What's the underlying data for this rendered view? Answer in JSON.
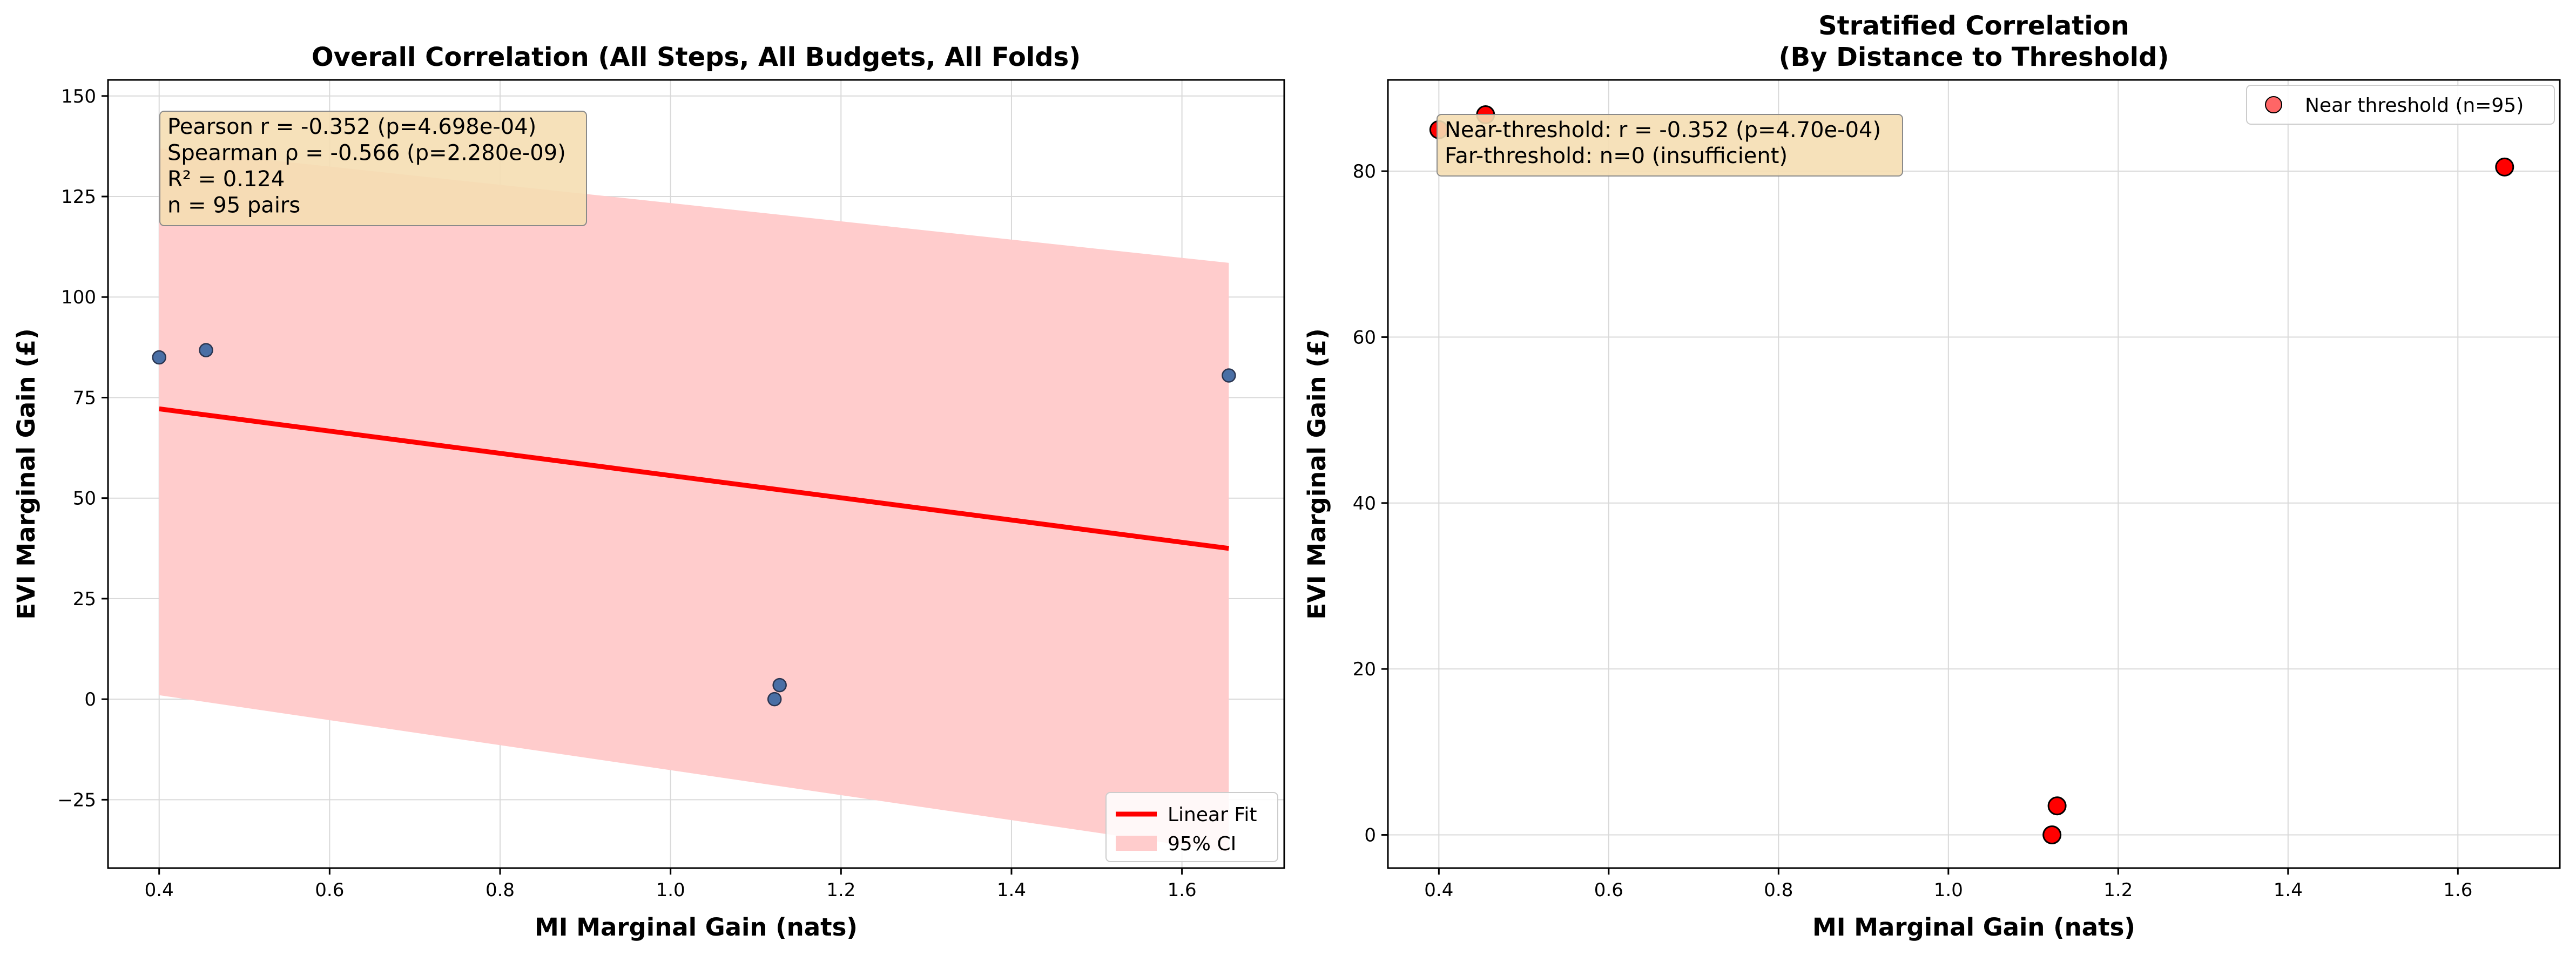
{
  "chart_data": [
    {
      "type": "scatter",
      "title": "Overall Correlation (All Steps, All Budgets, All Folds)",
      "xlabel": "MI Marginal Gain (nats)",
      "ylabel": "EVI Marginal Gain (£)",
      "xlim": [
        0.34,
        1.72
      ],
      "ylim": [
        -42,
        154
      ],
      "x_ticks": [
        0.4,
        0.6,
        0.8,
        1.0,
        1.2,
        1.4,
        1.6
      ],
      "x_tick_labels": [
        "0.4",
        "0.6",
        "0.8",
        "1.0",
        "1.2",
        "1.4",
        "1.6"
      ],
      "y_ticks": [
        -25,
        0,
        25,
        50,
        75,
        100,
        125,
        150
      ],
      "y_tick_labels": [
        "−25",
        "0",
        "25",
        "50",
        "75",
        "100",
        "125",
        "150"
      ],
      "grid": true,
      "points": {
        "x": [
          0.4,
          0.455,
          1.122,
          1.128,
          1.655
        ],
        "y": [
          85.0,
          86.8,
          0.0,
          3.5,
          80.5
        ],
        "color": "#4a6fa5"
      },
      "fit_line": {
        "name": "Linear Fit",
        "x": [
          0.4,
          1.655
        ],
        "y": [
          72.2,
          37.5
        ],
        "color": "#ff0000"
      },
      "ci_band": {
        "name": "95% CI",
        "x": [
          0.4,
          1.655
        ],
        "upper": [
          137.0,
          108.5
        ],
        "lower": [
          1.0,
          -38.0
        ],
        "color": "#ffcccc"
      },
      "stats_box": [
        "Pearson r = -0.352 (p=4.698e-04)",
        "Spearman ρ = -0.566 (p=2.280e-09)",
        "R² = 0.124",
        "n = 95 pairs"
      ],
      "legend": {
        "position": "lower-right",
        "entries": [
          {
            "label": "Linear Fit",
            "kind": "line",
            "color": "#ff0000"
          },
          {
            "label": "95% CI",
            "kind": "patch",
            "color": "#ffcccc"
          }
        ]
      }
    },
    {
      "type": "scatter",
      "title": "Stratified Correlation\n(By Distance to Threshold)",
      "xlabel": "MI Marginal Gain (nats)",
      "ylabel": "EVI Marginal Gain (£)",
      "xlim": [
        0.34,
        1.72
      ],
      "ylim": [
        -4,
        91
      ],
      "x_ticks": [
        0.4,
        0.6,
        0.8,
        1.0,
        1.2,
        1.4,
        1.6
      ],
      "x_tick_labels": [
        "0.4",
        "0.6",
        "0.8",
        "1.0",
        "1.2",
        "1.4",
        "1.6"
      ],
      "y_ticks": [
        0,
        20,
        40,
        60,
        80
      ],
      "y_tick_labels": [
        "0",
        "20",
        "40",
        "60",
        "80"
      ],
      "grid": true,
      "series": [
        {
          "name": "Near threshold (n=95)",
          "x": [
            0.4,
            0.455,
            1.122,
            1.128,
            1.655
          ],
          "y": [
            85.0,
            86.8,
            0.0,
            3.5,
            80.5
          ],
          "color": "#ff0000"
        }
      ],
      "stats_box": [
        "Near-threshold: r = -0.352 (p=4.70e-04)",
        "Far-threshold: n=0 (insufficient)"
      ],
      "legend": {
        "position": "upper-right",
        "entries": [
          {
            "label": "Near threshold (n=95)",
            "kind": "marker",
            "color": "#ff0000"
          }
        ]
      }
    }
  ]
}
